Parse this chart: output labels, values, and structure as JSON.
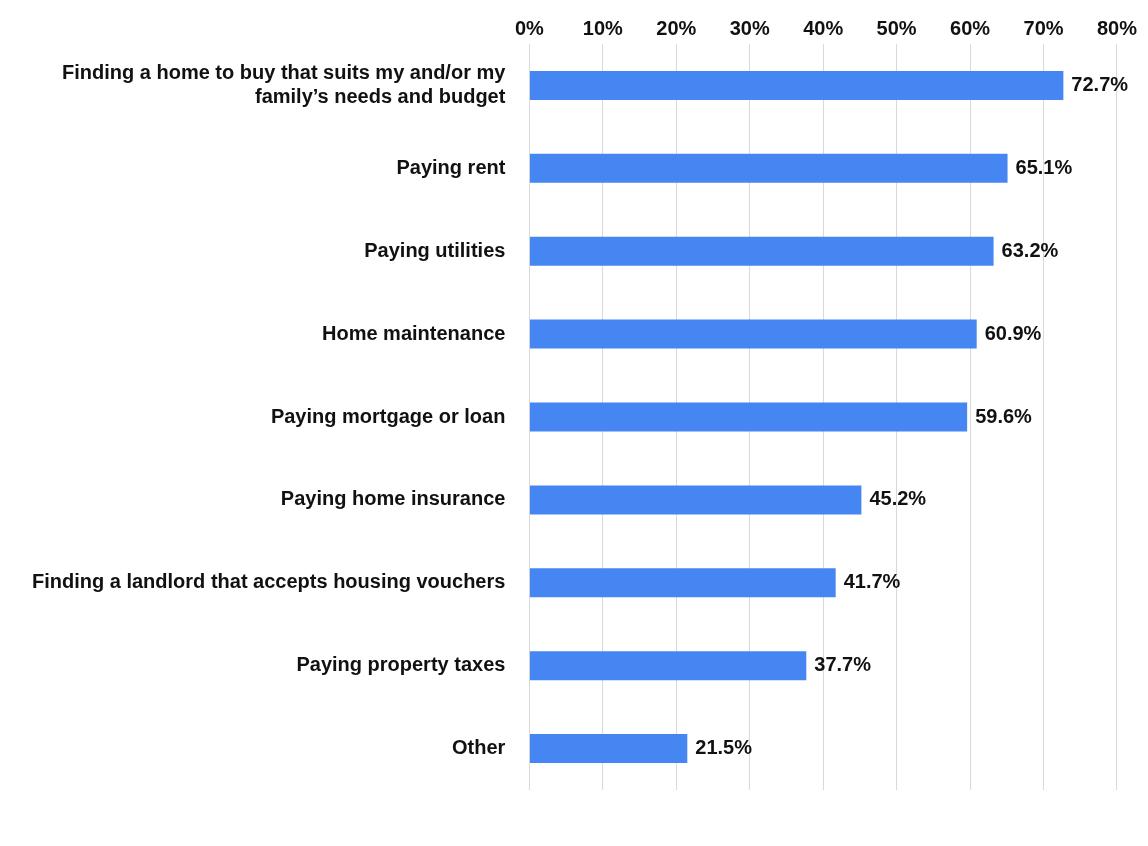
{
  "chart_data": {
    "type": "bar",
    "orientation": "horizontal",
    "categories": [
      "Finding a home to buy that suits my and/or my family’s needs and budget",
      "Paying rent",
      "Paying utilities",
      "Home maintenance",
      "Paying mortgage or loan",
      "Paying home insurance",
      "Finding a landlord that accepts housing vouchers",
      "Paying property taxes",
      "Other"
    ],
    "values": [
      72.7,
      65.1,
      63.2,
      60.9,
      59.6,
      45.2,
      41.7,
      37.7,
      21.5
    ],
    "value_labels": [
      "72.7%",
      "65.1%",
      "63.2%",
      "60.9%",
      "59.6%",
      "45.2%",
      "41.7%",
      "37.7%",
      "21.5%"
    ],
    "color": "#4586f2",
    "xlim": [
      0,
      80
    ],
    "xticks": [
      {
        "value": 0,
        "label": "0%"
      },
      {
        "value": 10,
        "label": "10%"
      },
      {
        "value": 20,
        "label": "20%"
      },
      {
        "value": 30,
        "label": "30%"
      },
      {
        "value": 40,
        "label": "40%"
      },
      {
        "value": 50,
        "label": "50%"
      },
      {
        "value": 60,
        "label": "60%"
      },
      {
        "value": 70,
        "label": "70%"
      },
      {
        "value": 80,
        "label": "80%"
      }
    ],
    "grid": "x",
    "legend": false
  }
}
